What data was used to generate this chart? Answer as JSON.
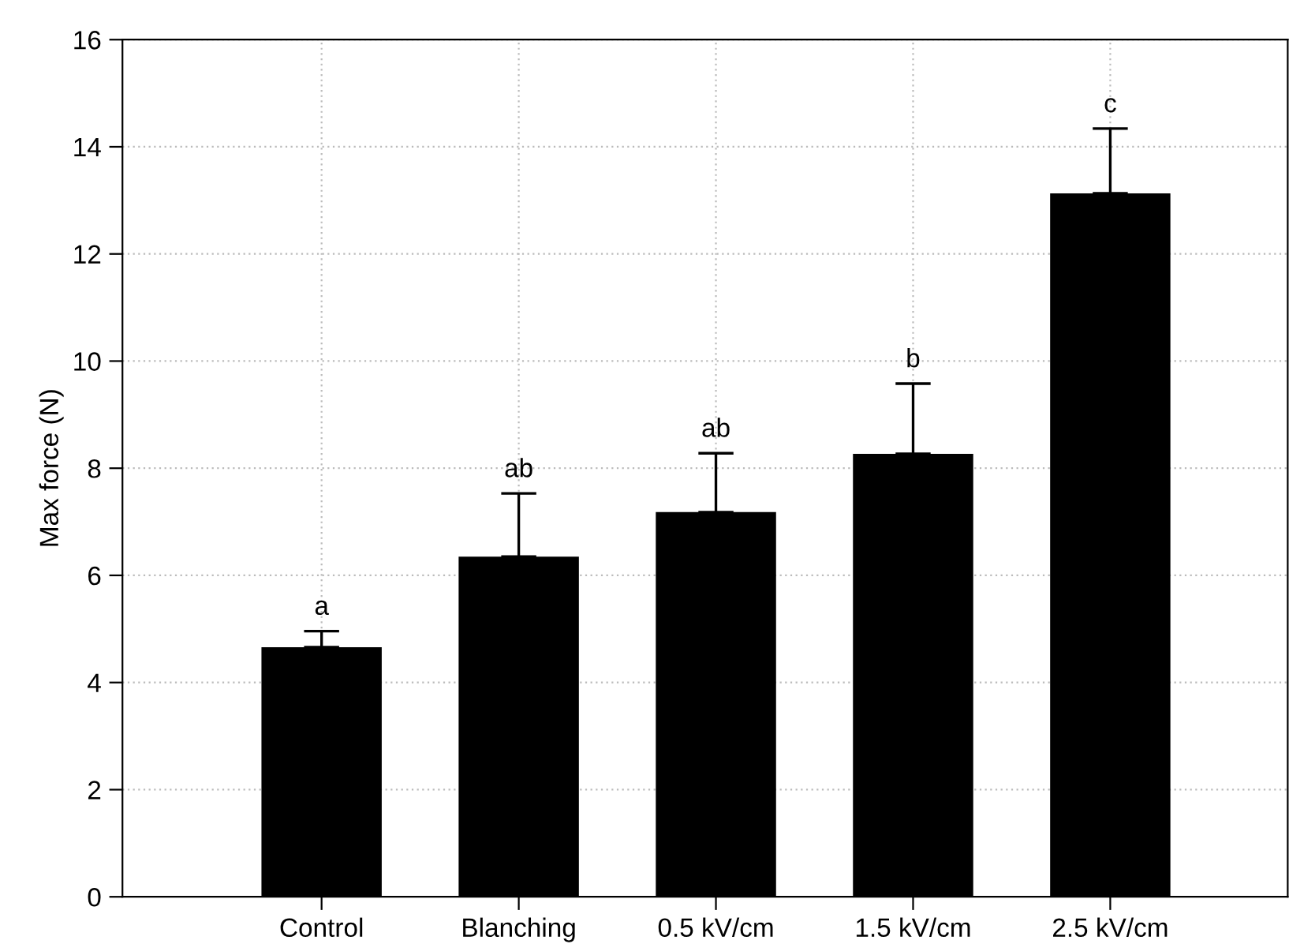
{
  "chart_data": {
    "type": "bar",
    "categories": [
      "Control",
      "Blanching",
      "0.5 kV/cm",
      "1.5 kV/cm",
      "2.5 kV/cm"
    ],
    "values": [
      4.66,
      6.35,
      7.18,
      8.27,
      13.13
    ],
    "errors": [
      0.3,
      1.18,
      1.1,
      1.31,
      1.21
    ],
    "color": "#000000",
    "ylabel": "Max force (N)",
    "ylim": [
      0,
      16
    ],
    "yticks": [
      0,
      2,
      4,
      6,
      8,
      10,
      12,
      14,
      16
    ],
    "grid": true,
    "annotations": [
      {
        "text": "a",
        "x": "Control",
        "y": 4.96
      },
      {
        "text": "ab",
        "x": "Blanching",
        "y": 7.53
      },
      {
        "text": "ab",
        "x": "0.5 kV/cm",
        "y": 8.28
      },
      {
        "text": "b",
        "x": "1.5 kV/cm",
        "y": 9.58
      },
      {
        "text": "c",
        "x": "2.5 kV/cm",
        "y": 14.34
      }
    ]
  }
}
